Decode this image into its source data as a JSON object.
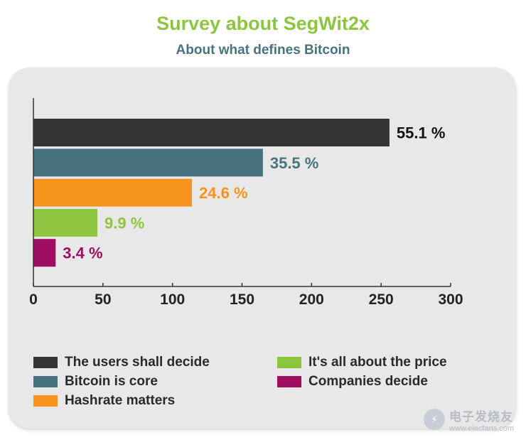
{
  "header": {
    "title": "Survey about SegWit2x",
    "subtitle": "About what defines Bitcoin"
  },
  "colors": {
    "title": "#8cc63f",
    "subtitle": "#46737f",
    "panel": "#e8e8e8"
  },
  "chart_data": {
    "type": "bar",
    "orientation": "horizontal",
    "categories": [
      "The users shall decide",
      "Bitcoin is core",
      "Hashrate matters",
      "It's all about the price",
      "Companies decide"
    ],
    "values": [
      256,
      165,
      114,
      46,
      16
    ],
    "data_labels": [
      "55.1 %",
      "35.5 %",
      "24.6 %",
      "9.9 %",
      "3.4 %"
    ],
    "colors": [
      "#333333",
      "#46737f",
      "#f7941d",
      "#8cc63f",
      "#9e0f62"
    ],
    "label_colors": [
      "#111111",
      "#46737f",
      "#f7941d",
      "#8cc63f",
      "#9e0f62"
    ],
    "xticks": [
      "0",
      "50",
      "100",
      "150",
      "200",
      "250",
      "300"
    ],
    "xlim": [
      0,
      300
    ],
    "grid": false,
    "legend_placement": "bottom"
  },
  "watermark": {
    "icon": "dian-zi-logo-icon",
    "chinese": "电子发烧友",
    "url": "www.elecfans.com"
  }
}
